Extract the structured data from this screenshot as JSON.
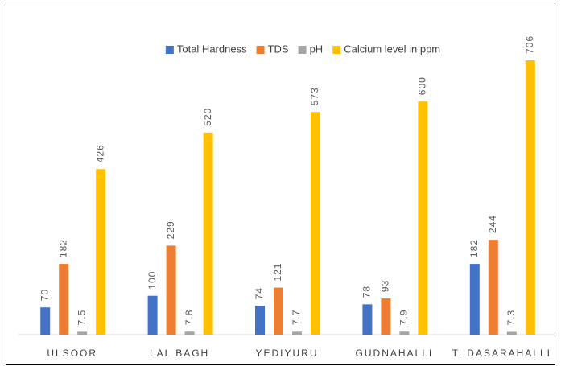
{
  "chart_data": {
    "type": "bar",
    "categories": [
      "ULSOOR",
      "LAL BAGH",
      "YEDIYURU",
      "GUDNAHALLI",
      "T. DASARAHALLI"
    ],
    "series": [
      {
        "name": "Total Hardness",
        "color": "#4472c4",
        "values": [
          70,
          100,
          74,
          78,
          182
        ]
      },
      {
        "name": "TDS",
        "color": "#ed7d31",
        "values": [
          182,
          229,
          121,
          93,
          244
        ]
      },
      {
        "name": "pH",
        "color": "#a5a5a5",
        "values": [
          7.5,
          7.8,
          7.7,
          7.9,
          7.3
        ]
      },
      {
        "name": "Calcium level in ppm",
        "color": "#ffc000",
        "values": [
          426,
          520,
          573,
          600,
          706
        ]
      }
    ],
    "legend": "top"
  }
}
